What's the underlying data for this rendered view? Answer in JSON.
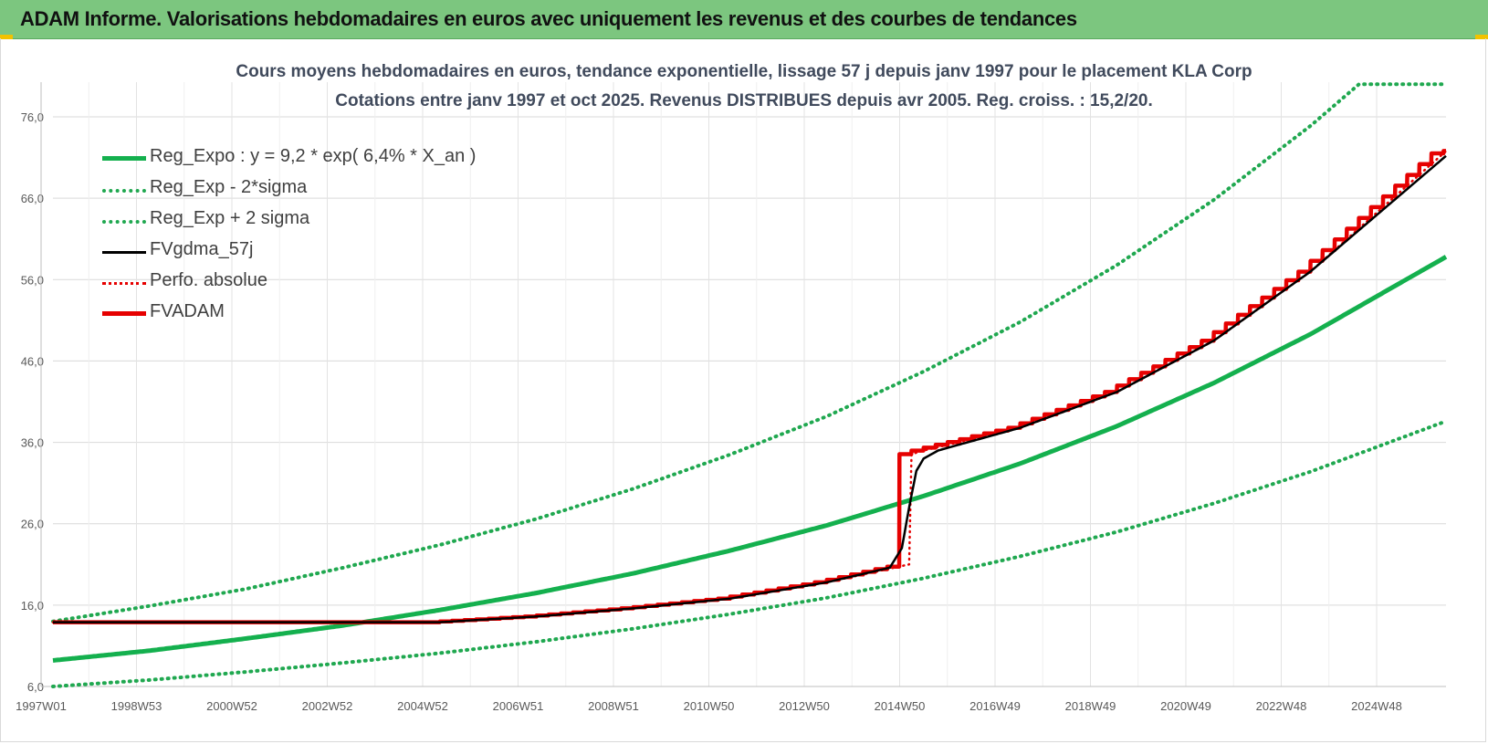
{
  "banner": {
    "title": "ADAM Informe. Valorisations hebdomadaires en euros avec uniquement les revenus et des courbes de tendances"
  },
  "colors": {
    "banner": "#7cc67f",
    "reg_expo": "#14b04e",
    "sigma": "#20a850",
    "fvgdma": "#000000",
    "perfo": "#e60000",
    "fvadam": "#e60000"
  },
  "chart_data": {
    "type": "line",
    "title": "Cours moyens hebdomadaires en euros, tendance exponentielle, lissage 57 j depuis janv 1997 pour le placement KLA Corp",
    "subtitle": "Cotations entre janv 1997 et oct 2025. Revenus DISTRIBUES depuis avr 2005. Reg. croiss. : 15,2/20.",
    "xlabel": "",
    "ylabel": "",
    "x_ticks": [
      "1997W01",
      "1998W53",
      "2000W52",
      "2002W52",
      "2004W52",
      "2006W51",
      "2008W51",
      "2010W50",
      "2012W50",
      "2014W50",
      "2016W49",
      "2018W49",
      "2020W49",
      "2022W48",
      "2024W48"
    ],
    "xlim": [
      1997.0,
      2025.8
    ],
    "y_ticks": [
      "6,0",
      "16,0",
      "26,0",
      "36,0",
      "46,0",
      "56,0",
      "66,0",
      "76,0"
    ],
    "ylim": [
      6,
      76
    ],
    "grid": true,
    "legend_position": "top-left",
    "series": [
      {
        "name": "Reg_Expo : y = 9,2 * exp( 6,4% *  X_an )",
        "style": "solid-thick-green",
        "x": [
          1997,
          1999,
          2001,
          2003,
          2005,
          2007,
          2009,
          2011,
          2013,
          2015,
          2017,
          2019,
          2021,
          2023,
          2025.8
        ],
        "y": [
          9.2,
          10.4,
          11.9,
          13.5,
          15.4,
          17.5,
          19.9,
          22.7,
          25.8,
          29.4,
          33.4,
          38.0,
          43.3,
          49.3,
          58.8
        ]
      },
      {
        "name": "Reg_Exp - 2*sigma",
        "style": "dotted-green",
        "x": [
          1997,
          1999,
          2001,
          2003,
          2005,
          2007,
          2009,
          2011,
          2013,
          2015,
          2017,
          2019,
          2021,
          2023,
          2025.8
        ],
        "y": [
          6.0,
          6.8,
          7.8,
          8.9,
          10.1,
          11.5,
          13.1,
          14.9,
          16.9,
          19.3,
          22.0,
          25.0,
          28.5,
          32.4,
          38.6
        ]
      },
      {
        "name": "Reg_Exp + 2 sigma",
        "style": "dotted-green",
        "x": [
          1997,
          1999,
          2001,
          2003,
          2005,
          2007,
          2009,
          2011,
          2013,
          2015,
          2017,
          2019,
          2021,
          2023,
          2024,
          2025.8
        ],
        "y": [
          14.0,
          15.9,
          18.0,
          20.6,
          23.4,
          26.6,
          30.3,
          34.5,
          39.2,
          44.7,
          50.8,
          57.8,
          65.8,
          74.9,
          80.0,
          80.0
        ]
      },
      {
        "name": "FVgdma_57j",
        "style": "solid-black",
        "x": [
          1997,
          2005,
          2007,
          2009,
          2011,
          2013,
          2014.3,
          2014.55,
          2014.7,
          2014.85,
          2015,
          2015.3,
          2017,
          2019,
          2021,
          2023,
          2025.8
        ],
        "y": [
          13.9,
          13.9,
          14.6,
          15.6,
          16.8,
          18.8,
          20.6,
          23.0,
          28.0,
          32.5,
          34.0,
          35.0,
          37.8,
          42.2,
          48.5,
          57.0,
          71.2
        ]
      },
      {
        "name": "Perfo. absolue",
        "style": "dotted-red",
        "x": [
          1997,
          2005,
          2007,
          2009,
          2011,
          2013,
          2014.7,
          2014.72,
          2015,
          2017,
          2019,
          2021,
          2023,
          2025.8
        ],
        "y": [
          13.9,
          13.9,
          14.6,
          15.6,
          16.8,
          18.8,
          21.0,
          34.5,
          35.0,
          37.8,
          42.2,
          48.5,
          57.0,
          71.8
        ]
      },
      {
        "name": "FVADAM",
        "style": "solid-thick-red-stepped",
        "x": [
          1997,
          2005,
          2007,
          2009,
          2011,
          2013,
          2014.7,
          2014.72,
          2015,
          2017,
          2019,
          2021,
          2023,
          2025.8
        ],
        "y": [
          13.9,
          13.9,
          14.6,
          15.6,
          16.8,
          18.8,
          21.0,
          34.5,
          35.0,
          37.8,
          42.2,
          48.5,
          57.0,
          71.8
        ]
      }
    ]
  }
}
